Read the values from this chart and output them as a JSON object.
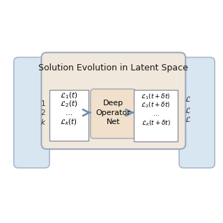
{
  "bg_color": "#ffffff",
  "left_panel_color": "#d8e6f2",
  "left_panel_edge": "#a8b8cc",
  "right_panel_color": "#d8e6f2",
  "right_panel_edge": "#a8b8cc",
  "main_box_color": "#f0e8dc",
  "main_box_edge": "#a0a8b8",
  "small_box_color": "#ffffff",
  "small_box_edge": "#888898",
  "deep_op_box_color": "#f0e0cc",
  "deep_op_box_edge": "#a0a8b8",
  "arrow_color": "#7090b0",
  "title": "Solution Evolution in Latent Space",
  "left_labels": [
    "$\\mathcal{L}_1(t)$",
    "$\\mathcal{L}_2(t)$",
    "$\\ldots$",
    "$\\mathcal{L}_k(t)$"
  ],
  "right_labels": [
    "$\\mathcal{L}_1(t + \\delta t)$",
    "$\\mathcal{L}_2(t + \\delta t)$",
    "$\\ldots$",
    "$\\mathcal{L}_k(t + \\delta t)$"
  ],
  "side_left_labels": [
    "1",
    "2",
    "$k$"
  ],
  "side_right_labels": [
    "$\\mathcal{L}$",
    "$\\mathcal{L}$",
    "$\\dot{\\mathcal{L}}$"
  ],
  "deep_op_text": [
    "Deep",
    "Operator",
    "Net"
  ]
}
